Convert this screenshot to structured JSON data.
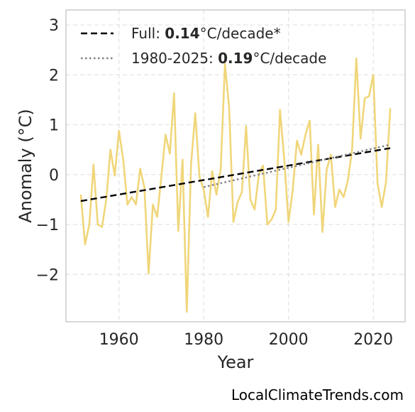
{
  "credit": "LocalClimateTrends.com",
  "chart_data": {
    "type": "line",
    "xlabel": "Year",
    "ylabel": "Anomaly (°C)",
    "xlim": [
      1947.5,
      2027.5
    ],
    "ylim": [
      -2.95,
      3.3
    ],
    "xticks": [
      1960,
      1980,
      2000,
      2020
    ],
    "yticks": [
      -2,
      -1,
      0,
      1,
      2,
      3
    ],
    "ytick_labels": [
      "−2",
      "−1",
      "0",
      "1",
      "2",
      "3"
    ],
    "grid": true,
    "legend_position": "top-left",
    "series": [
      {
        "color": "#f0d67a",
        "x": [
          1951,
          1952,
          1953,
          1954,
          1955,
          1956,
          1957,
          1958,
          1959,
          1960,
          1961,
          1962,
          1963,
          1964,
          1965,
          1966,
          1967,
          1968,
          1969,
          1970,
          1971,
          1972,
          1973,
          1974,
          1975,
          1976,
          1977,
          1978,
          1979,
          1980,
          1981,
          1982,
          1983,
          1984,
          1985,
          1986,
          1987,
          1988,
          1989,
          1990,
          1991,
          1992,
          1993,
          1994,
          1995,
          1996,
          1997,
          1998,
          1999,
          2000,
          2001,
          2002,
          2003,
          2004,
          2005,
          2006,
          2007,
          2008,
          2009,
          2010,
          2011,
          2012,
          2013,
          2014,
          2015,
          2016,
          2017,
          2018,
          2019,
          2020,
          2021,
          2022,
          2023,
          2024
        ],
        "y": [
          -0.4,
          -1.4,
          -1.0,
          0.2,
          -1.0,
          -1.05,
          -0.5,
          0.5,
          -0.02,
          0.88,
          0.3,
          -0.6,
          -0.45,
          -0.6,
          0.12,
          -0.25,
          -1.98,
          -0.6,
          -0.85,
          -0.05,
          0.8,
          0.42,
          1.63,
          -1.13,
          0.3,
          -2.75,
          0.2,
          1.23,
          -0.05,
          -0.3,
          -0.85,
          0.07,
          -0.4,
          0.1,
          2.22,
          1.35,
          -0.95,
          -0.55,
          -0.35,
          0.97,
          -0.5,
          -0.7,
          0.0,
          0.18,
          -1.0,
          -0.9,
          -0.7,
          1.3,
          0.3,
          -0.95,
          -0.3,
          0.68,
          0.4,
          0.8,
          1.08,
          -0.8,
          0.6,
          -1.15,
          0.1,
          0.4,
          -0.65,
          -0.3,
          -0.45,
          -0.12,
          0.5,
          2.33,
          0.72,
          1.53,
          1.57,
          2.0,
          -0.18,
          -0.65,
          -0.15,
          1.33
        ]
      }
    ],
    "trend_lines": [
      {
        "label_prefix": "Full: ",
        "label_value": "0.14",
        "label_suffix": "°C/decade*",
        "x": [
          1951,
          2024
        ],
        "y": [
          -0.53,
          0.53
        ],
        "color": "#000000",
        "style": "dashed"
      },
      {
        "label_prefix": "1980-2025: ",
        "label_value": "0.19",
        "label_suffix": "°C/decade",
        "x": [
          1980,
          2024
        ],
        "y": [
          -0.25,
          0.6
        ],
        "color": "#808080",
        "style": "dotted"
      }
    ]
  }
}
